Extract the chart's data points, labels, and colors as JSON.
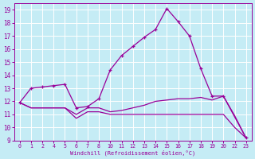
{
  "xlabel": "Windchill (Refroidissement éolien,°C)",
  "bg_color": "#c5ecf5",
  "grid_color": "#ffffff",
  "line_color": "#990099",
  "xlabels": [
    "0",
    "1",
    "2",
    "4",
    "5",
    "6",
    "7",
    "8",
    "10",
    "11",
    "12",
    "13",
    "14",
    "15",
    "16",
    "17",
    "18",
    "19",
    "20",
    "22",
    "23"
  ],
  "xlim": [
    -0.5,
    20.5
  ],
  "ylim": [
    9.0,
    19.5
  ],
  "yticks": [
    9,
    10,
    11,
    12,
    13,
    14,
    15,
    16,
    17,
    18,
    19
  ],
  "curve_top_x": [
    0,
    1,
    2,
    3,
    4,
    5,
    6,
    7,
    8,
    9,
    10,
    11,
    12,
    13,
    14,
    15,
    16,
    17,
    18,
    20
  ],
  "curve_top_y": [
    11.9,
    13.0,
    13.1,
    13.2,
    13.3,
    11.5,
    11.6,
    12.2,
    14.4,
    15.5,
    16.2,
    16.9,
    17.5,
    19.1,
    18.1,
    17.0,
    14.5,
    12.4,
    12.4,
    9.2
  ],
  "curve_mid_x": [
    0,
    1,
    2,
    3,
    4,
    5,
    6,
    7,
    8,
    9,
    10,
    11,
    12,
    13,
    14,
    15,
    16,
    17,
    18,
    19,
    20
  ],
  "curve_mid_y": [
    11.9,
    11.5,
    11.5,
    11.5,
    11.5,
    11.0,
    11.5,
    11.5,
    11.2,
    11.3,
    11.5,
    11.7,
    12.0,
    12.1,
    12.2,
    12.2,
    12.3,
    12.1,
    12.4,
    10.9,
    9.2
  ],
  "curve_bot_x": [
    0,
    1,
    2,
    3,
    4,
    5,
    6,
    7,
    8,
    9,
    10,
    11,
    12,
    13,
    14,
    15,
    16,
    17,
    18,
    19,
    20
  ],
  "curve_bot_y": [
    11.9,
    11.5,
    11.5,
    11.5,
    11.5,
    10.7,
    11.2,
    11.2,
    11.0,
    11.0,
    11.0,
    11.0,
    11.0,
    11.0,
    11.0,
    11.0,
    11.0,
    11.0,
    11.0,
    10.0,
    9.2
  ]
}
